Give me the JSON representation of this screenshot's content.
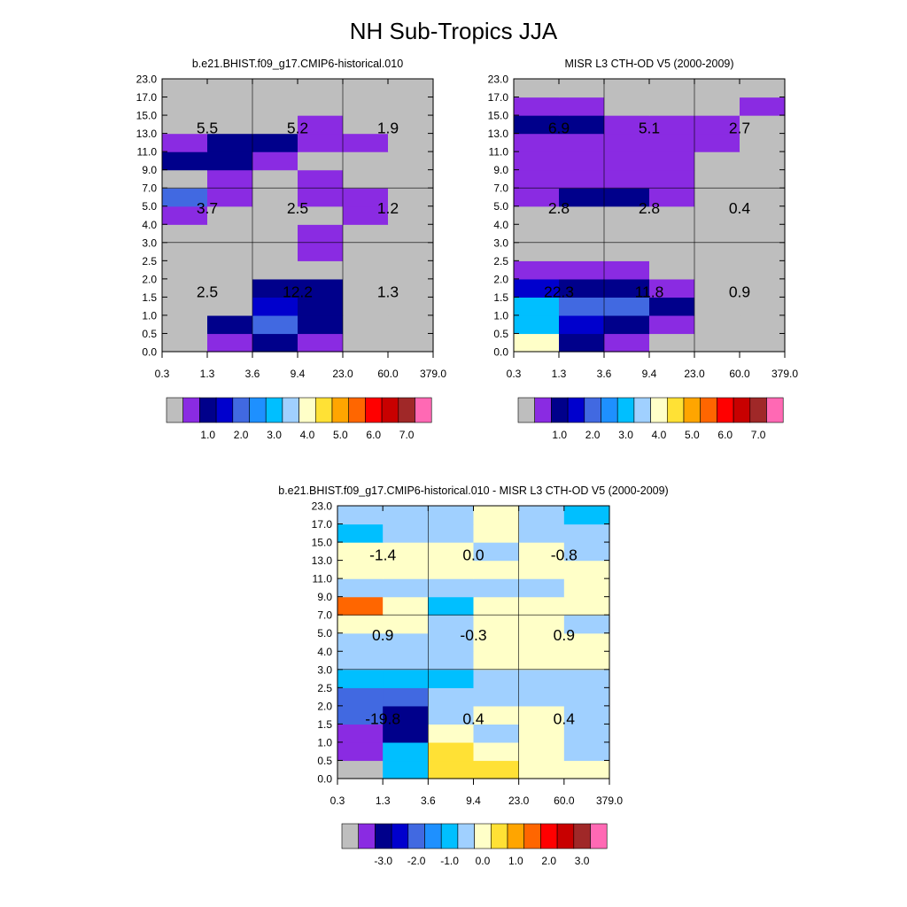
{
  "figure": {
    "title": "NH Sub-Tropics JJA"
  },
  "palette": {
    "colors": [
      "#bebebe",
      "#8a2be2",
      "#00008b",
      "#0000cd",
      "#4169e1",
      "#1e90ff",
      "#00bfff",
      "#a0d0ff",
      "#ffffc8",
      "#ffe135",
      "#ffa500",
      "#ff6600",
      "#ff0000",
      "#c80000",
      "#a02828",
      "#ff69b4"
    ]
  },
  "chart_data": [
    {
      "type": "heatmap",
      "title": "b.e21.BHIST.f09_g17.CMIP6-historical.010",
      "x_tick_labels": [
        "0.3",
        "1.3",
        "3.6",
        "9.4",
        "23.0",
        "60.0",
        "379.0"
      ],
      "y_tick_labels": [
        "0.0",
        "0.5",
        "1.0",
        "1.5",
        "2.0",
        "2.5",
        "3.0",
        "4.0",
        "5.0",
        "7.0",
        "9.0",
        "11.0",
        "13.0",
        "15.0",
        "17.0",
        "23.0"
      ],
      "cell_color_index": [
        [
          0,
          1,
          2,
          1,
          0,
          0
        ],
        [
          0,
          2,
          4,
          2,
          0,
          0
        ],
        [
          0,
          0,
          3,
          2,
          0,
          0
        ],
        [
          0,
          0,
          2,
          2,
          0,
          0
        ],
        [
          0,
          0,
          0,
          0,
          0,
          0
        ],
        [
          0,
          0,
          0,
          1,
          0,
          0
        ],
        [
          0,
          0,
          0,
          1,
          0,
          0
        ],
        [
          1,
          0,
          0,
          0,
          1,
          0
        ],
        [
          4,
          1,
          0,
          1,
          1,
          0
        ],
        [
          0,
          1,
          0,
          1,
          0,
          0
        ],
        [
          2,
          2,
          1,
          0,
          0,
          0
        ],
        [
          1,
          2,
          2,
          1,
          1,
          0
        ],
        [
          0,
          0,
          0,
          1,
          0,
          0
        ],
        [
          0,
          0,
          0,
          0,
          0,
          0
        ],
        [
          0,
          0,
          0,
          0,
          0,
          0
        ]
      ],
      "box_values": [
        [
          "2.5",
          "12.2",
          "1.3"
        ],
        [
          "3.7",
          "2.5",
          "1.2"
        ],
        [
          "5.5",
          "5.2",
          "1.9"
        ]
      ],
      "colorbar_labels": [
        "1.0",
        "2.0",
        "3.0",
        "4.0",
        "5.0",
        "6.0",
        "7.0"
      ]
    },
    {
      "type": "heatmap",
      "title": "MISR L3 CTH-OD V5 (2000-2009)",
      "x_tick_labels": [
        "0.3",
        "1.3",
        "3.6",
        "9.4",
        "23.0",
        "60.0",
        "379.0"
      ],
      "y_tick_labels": [
        "0.0",
        "0.5",
        "1.0",
        "1.5",
        "2.0",
        "2.5",
        "3.0",
        "4.0",
        "5.0",
        "7.0",
        "9.0",
        "11.0",
        "13.0",
        "15.0",
        "17.0",
        "23.0"
      ],
      "cell_color_index": [
        [
          8,
          2,
          1,
          0,
          0,
          0
        ],
        [
          6,
          3,
          2,
          1,
          0,
          0
        ],
        [
          6,
          4,
          4,
          2,
          0,
          0
        ],
        [
          3,
          2,
          2,
          1,
          0,
          0
        ],
        [
          1,
          1,
          1,
          0,
          0,
          0
        ],
        [
          0,
          0,
          0,
          0,
          0,
          0
        ],
        [
          0,
          0,
          0,
          0,
          0,
          0
        ],
        [
          0,
          0,
          0,
          0,
          0,
          0
        ],
        [
          1,
          2,
          2,
          1,
          0,
          0
        ],
        [
          1,
          1,
          1,
          1,
          0,
          0
        ],
        [
          1,
          1,
          1,
          1,
          0,
          0
        ],
        [
          1,
          1,
          1,
          1,
          1,
          0
        ],
        [
          2,
          2,
          1,
          1,
          1,
          0
        ],
        [
          1,
          1,
          0,
          0,
          0,
          1
        ],
        [
          0,
          0,
          0,
          0,
          0,
          0
        ]
      ],
      "box_values": [
        [
          "22.3",
          "11.8",
          "0.9"
        ],
        [
          "2.8",
          "2.8",
          "0.4"
        ],
        [
          "6.9",
          "5.1",
          "2.7"
        ]
      ],
      "colorbar_labels": [
        "1.0",
        "2.0",
        "3.0",
        "4.0",
        "5.0",
        "6.0",
        "7.0"
      ]
    },
    {
      "type": "heatmap",
      "title": "b.e21.BHIST.f09_g17.CMIP6-historical.010 - MISR L3 CTH-OD V5 (2000-2009)",
      "x_tick_labels": [
        "0.3",
        "1.3",
        "3.6",
        "9.4",
        "23.0",
        "60.0",
        "379.0"
      ],
      "y_tick_labels": [
        "0.0",
        "0.5",
        "1.0",
        "1.5",
        "2.0",
        "2.5",
        "3.0",
        "4.0",
        "5.0",
        "7.0",
        "9.0",
        "11.0",
        "13.0",
        "15.0",
        "17.0",
        "23.0"
      ],
      "cell_color_index": [
        [
          0,
          6,
          9,
          9,
          8,
          8
        ],
        [
          1,
          6,
          9,
          8,
          8,
          7
        ],
        [
          1,
          2,
          8,
          7,
          8,
          7
        ],
        [
          4,
          2,
          7,
          8,
          8,
          7
        ],
        [
          4,
          4,
          7,
          7,
          7,
          7
        ],
        [
          6,
          6,
          6,
          7,
          7,
          7
        ],
        [
          7,
          7,
          7,
          8,
          8,
          8
        ],
        [
          7,
          7,
          7,
          8,
          8,
          8
        ],
        [
          8,
          8,
          7,
          8,
          8,
          7
        ],
        [
          11,
          8,
          6,
          8,
          8,
          8
        ],
        [
          7,
          7,
          7,
          7,
          7,
          8
        ],
        [
          8,
          8,
          8,
          8,
          8,
          8
        ],
        [
          8,
          8,
          8,
          7,
          8,
          7
        ],
        [
          6,
          7,
          7,
          8,
          7,
          7
        ],
        [
          7,
          7,
          7,
          8,
          7,
          6
        ]
      ],
      "box_values": [
        [
          "-19.8",
          "0.4",
          "0.4"
        ],
        [
          "0.9",
          "-0.3",
          "0.9"
        ],
        [
          "-1.4",
          "0.0",
          "-0.8"
        ]
      ],
      "colorbar_labels": [
        "-3.0",
        "-2.0",
        "-1.0",
        "0.0",
        "1.0",
        "2.0",
        "3.0"
      ]
    }
  ]
}
